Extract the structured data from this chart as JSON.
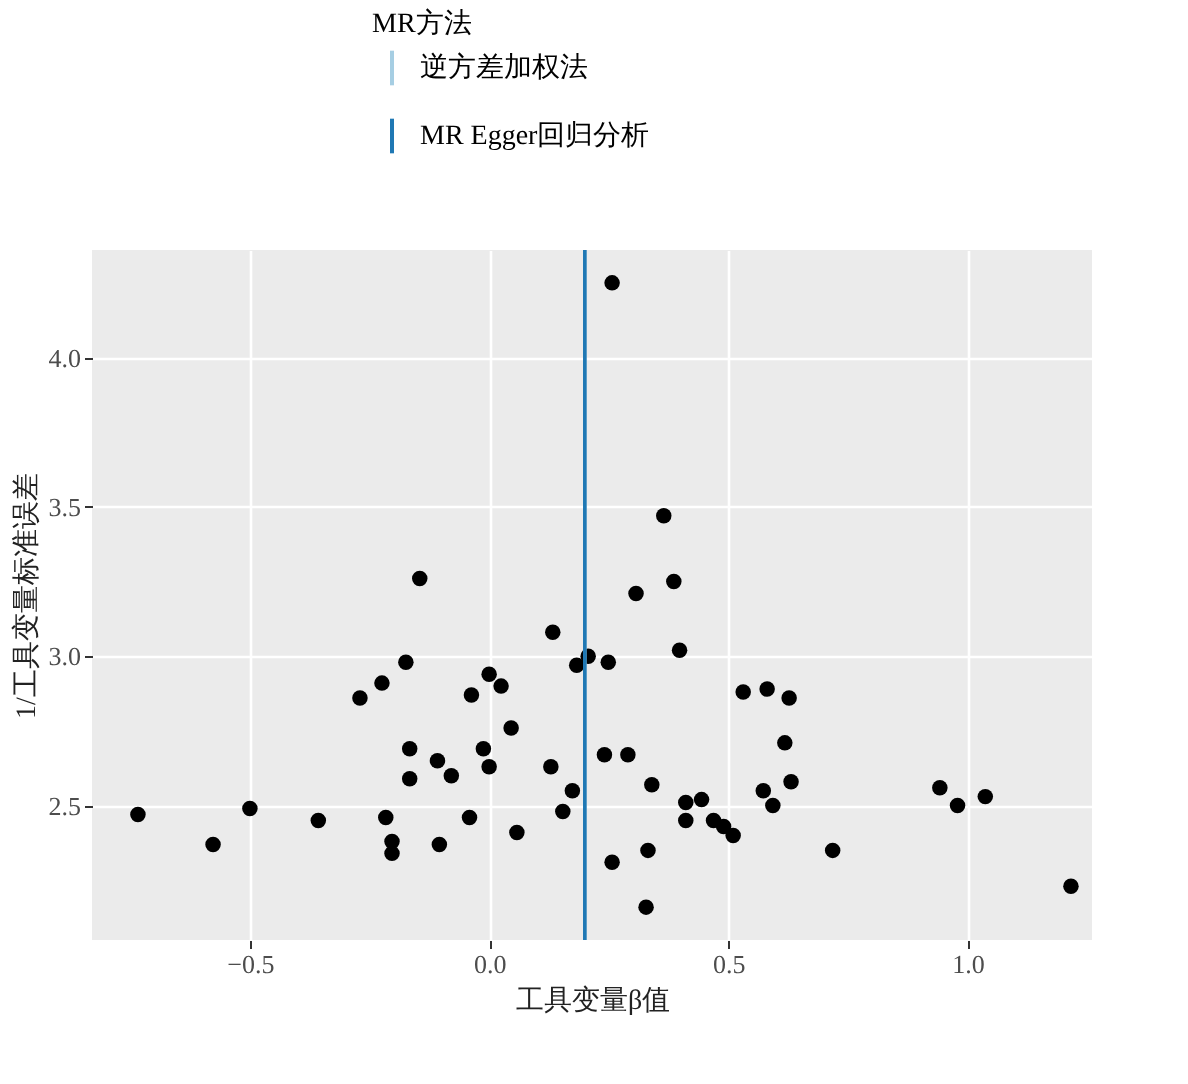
{
  "chart_data": {
    "type": "scatter",
    "xlabel": "工具变量β值",
    "ylabel": "1/工具变量标准误差",
    "legend_title": "MR方法",
    "legend": "top",
    "grid": true,
    "marker": "circle",
    "xlim": [
      -0.83,
      1.26
    ],
    "ylim": [
      2.05,
      4.36
    ],
    "xticks": [
      {
        "value": -0.5,
        "label": "−0.5"
      },
      {
        "value": 0,
        "label": "0.0"
      },
      {
        "value": 0.5,
        "label": "0.5"
      },
      {
        "value": 1,
        "label": "1.0"
      }
    ],
    "yticks": [
      {
        "value": 2.5,
        "label": "2.5"
      },
      {
        "value": 3,
        "label": "3.0"
      },
      {
        "value": 3.5,
        "label": "3.5"
      },
      {
        "value": 4,
        "label": "4.0"
      }
    ],
    "ref_lines": [
      {
        "axis": "x",
        "value": 0.2,
        "label": "逆方差加权法",
        "color": "#a6cee3"
      },
      {
        "axis": "x",
        "value": 0.2,
        "label": "MR Egger回归分析",
        "color": "#1f78b4"
      }
    ],
    "series": [
      {
        "color": "#000000",
        "x": [
          -0.734,
          -0.577,
          -0.5,
          -0.357,
          -0.27,
          -0.224,
          -0.174,
          -0.145,
          -0.166,
          -0.166,
          -0.216,
          -0.203,
          -0.203,
          -0.108,
          -0.079,
          -0.104,
          -0.037,
          -0.041,
          -0.012,
          0.0,
          0.0,
          0.025,
          0.046,
          0.058,
          0.129,
          0.133,
          0.154,
          0.174,
          0.183,
          0.207,
          0.257,
          0.365,
          0.307,
          0.386,
          0.398,
          0.249,
          0.531,
          0.581,
          0.627,
          0.618,
          0.631,
          0.573,
          0.593,
          0.241,
          0.29,
          0.34,
          0.411,
          0.444,
          0.411,
          0.469,
          0.49,
          0.51,
          0.257,
          0.332,
          0.328,
          0.718,
          0.942,
          0.979,
          1.037,
          1.216
        ],
        "values": [
          2.47,
          2.37,
          2.49,
          2.45,
          2.86,
          2.91,
          2.98,
          3.26,
          2.69,
          2.59,
          2.46,
          2.38,
          2.34,
          2.65,
          2.6,
          2.37,
          2.87,
          2.46,
          2.69,
          2.94,
          2.63,
          2.9,
          2.76,
          2.41,
          2.63,
          3.08,
          2.48,
          2.55,
          2.97,
          3.0,
          4.25,
          3.47,
          3.21,
          3.25,
          3.02,
          2.98,
          2.88,
          2.89,
          2.86,
          2.71,
          2.58,
          2.55,
          2.5,
          2.67,
          2.67,
          2.57,
          2.51,
          2.52,
          2.45,
          2.45,
          2.43,
          2.4,
          2.31,
          2.35,
          2.16,
          2.35,
          2.56,
          2.5,
          2.53,
          2.23
        ]
      }
    ]
  }
}
